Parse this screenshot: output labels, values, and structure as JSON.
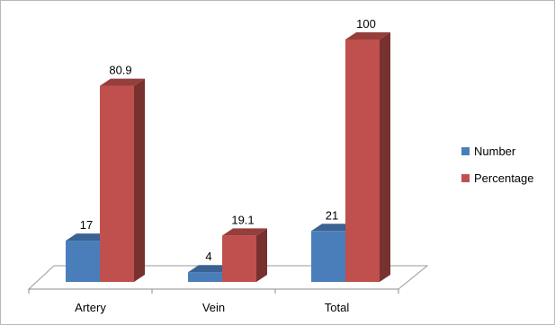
{
  "chart_data": {
    "type": "bar",
    "categories": [
      "Artery",
      "Vein",
      "Total"
    ],
    "series": [
      {
        "name": "Number",
        "values": [
          17,
          4,
          21
        ],
        "color": "#4a7ebb"
      },
      {
        "name": "Percentage",
        "values": [
          80.9,
          19.1,
          100
        ],
        "color": "#c0504d"
      }
    ],
    "ylim": [
      0,
      100
    ],
    "grid": false,
    "legend_position": "right",
    "style": "3d-column"
  }
}
